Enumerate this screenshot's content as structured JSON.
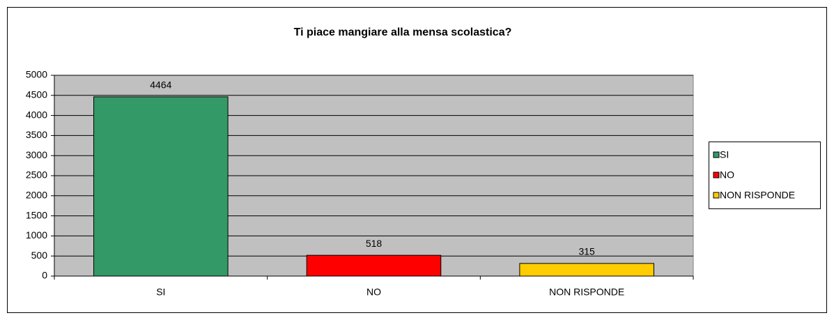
{
  "chart_data": {
    "type": "bar",
    "title": "Ti piace mangiare alla mensa scolastica?",
    "categories": [
      "SI",
      "NO",
      "NON RISPONDE"
    ],
    "values": [
      4464,
      518,
      315
    ],
    "colors": [
      "#339966",
      "#ff0000",
      "#ffcc00"
    ],
    "ylim": [
      0,
      5000
    ],
    "yticks": [
      0,
      500,
      1000,
      1500,
      2000,
      2500,
      3000,
      3500,
      4000,
      4500,
      5000
    ],
    "grid": true,
    "legend": "right"
  }
}
